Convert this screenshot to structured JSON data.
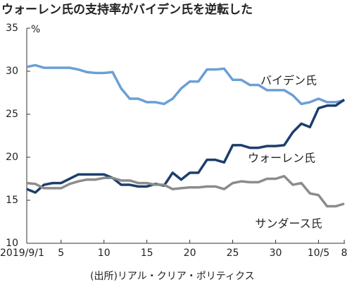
{
  "chart_data": {
    "type": "line",
    "title": "ウォーレン氏の支持率がバイデン氏を逆転した",
    "ylabel": "%",
    "source": "(出所)リアル・クリア・ポリティクス",
    "categories": [
      "2019/9/1",
      null,
      null,
      null,
      "5",
      null,
      null,
      null,
      null,
      "10",
      null,
      null,
      null,
      null,
      "15",
      null,
      null,
      null,
      null,
      "20",
      null,
      null,
      null,
      null,
      "25",
      null,
      null,
      null,
      null,
      "30",
      null,
      null,
      null,
      null,
      "10/5",
      null,
      null,
      "8"
    ],
    "series": [
      {
        "name": "バイデン氏",
        "color": "#6b9fd6",
        "values": [
          30.5,
          30.7,
          30.4,
          30.4,
          30.4,
          30.4,
          30.2,
          29.9,
          29.8,
          29.8,
          29.9,
          28.0,
          26.8,
          26.8,
          26.4,
          26.4,
          26.2,
          26.8,
          28.0,
          28.8,
          28.8,
          30.2,
          30.2,
          30.3,
          29.0,
          29.0,
          28.4,
          28.4,
          27.8,
          27.8,
          27.8,
          27.2,
          26.2,
          26.4,
          26.8,
          26.4,
          26.4,
          26.6
        ]
      },
      {
        "name": "ウォーレン氏",
        "color": "#1d3e6c",
        "values": [
          16.3,
          15.9,
          16.8,
          17.0,
          17.0,
          17.5,
          18.0,
          18.0,
          18.0,
          18.0,
          17.6,
          16.8,
          16.8,
          16.6,
          16.6,
          16.9,
          16.7,
          18.2,
          17.4,
          18.2,
          18.2,
          19.7,
          19.7,
          19.4,
          21.4,
          21.4,
          21.1,
          21.1,
          21.3,
          21.3,
          21.4,
          22.9,
          23.9,
          23.5,
          25.7,
          26.0,
          26.0,
          26.7
        ]
      },
      {
        "name": "サンダース氏",
        "color": "#8c8c8c",
        "values": [
          17.0,
          16.9,
          16.4,
          16.4,
          16.4,
          16.9,
          17.2,
          17.4,
          17.4,
          17.6,
          17.6,
          17.3,
          17.3,
          17.0,
          17.0,
          16.8,
          16.8,
          16.3,
          16.4,
          16.5,
          16.5,
          16.6,
          16.6,
          16.3,
          17.0,
          17.2,
          17.1,
          17.1,
          17.5,
          17.5,
          17.8,
          16.8,
          17.0,
          15.8,
          15.6,
          14.3,
          14.3,
          14.6
        ]
      }
    ],
    "ylim": [
      10,
      35
    ],
    "yticks": [
      10,
      15,
      20,
      25,
      30,
      35
    ],
    "grid": false
  }
}
